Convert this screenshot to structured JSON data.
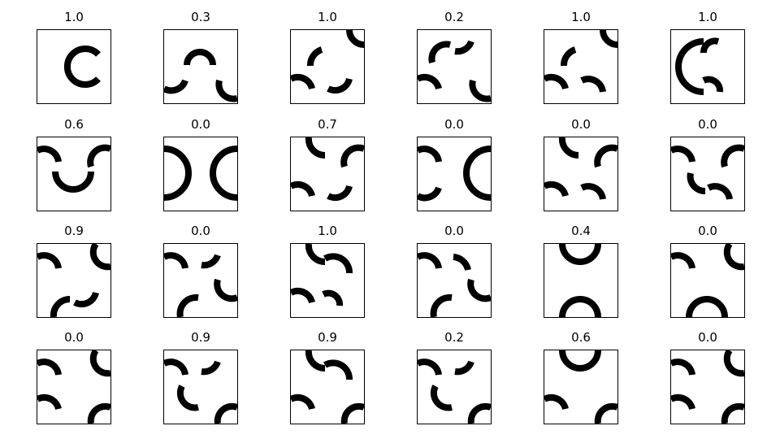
{
  "figure": {
    "panels": [
      {
        "score": "1.0",
        "glyph": [
          [
            "C"
          ]
        ]
      },
      {
        "score": "0.3",
        "glyph": [
          [
            "q2-center"
          ],
          [
            "bl-corner-top"
          ],
          [
            "br-corner-top"
          ]
        ]
      },
      {
        "score": "1.0",
        "glyph": [
          [
            "tr-corner"
          ],
          [
            "center-tl"
          ],
          [
            "bl-edge"
          ],
          [
            "bottom-center-right"
          ]
        ]
      },
      {
        "score": "0.2",
        "glyph": [
          [
            "center-tl-arc"
          ],
          [
            "center-tr-arc"
          ],
          [
            "bl-edge"
          ],
          [
            "br-corner-top"
          ]
        ]
      },
      {
        "score": "1.0",
        "glyph": [
          [
            "tr-corner"
          ],
          [
            "center-tl"
          ],
          [
            "bl-edge"
          ],
          [
            "bottom-center-left"
          ]
        ]
      },
      {
        "score": "1.0",
        "glyph": [
          [
            "left-big-c"
          ],
          [
            "center-top-right"
          ],
          [
            "center-bottom-right"
          ]
        ]
      },
      {
        "score": "0.6",
        "glyph": [
          [
            "tl-edge"
          ],
          [
            "tr-edge"
          ],
          [
            "center-u"
          ]
        ]
      },
      {
        "score": "0.0",
        "glyph": [
          [
            "left-half"
          ],
          [
            "right-half"
          ]
        ]
      },
      {
        "score": "0.7",
        "glyph": [
          [
            "top-left-hook"
          ],
          [
            "tr-edge"
          ],
          [
            "bl-edge"
          ],
          [
            "bottom-center-right"
          ]
        ]
      },
      {
        "score": "0.0",
        "glyph": [
          [
            "tl-edge"
          ],
          [
            "bl-corner-top"
          ],
          [
            "right-half"
          ]
        ]
      },
      {
        "score": "0.0",
        "glyph": [
          [
            "top-left-hook"
          ],
          [
            "tr-edge"
          ],
          [
            "bl-edge"
          ],
          [
            "bottom-center-left"
          ]
        ]
      },
      {
        "score": "0.0",
        "glyph": [
          [
            "tl-edge"
          ],
          [
            "tr-edge"
          ],
          [
            "center-hook-down"
          ],
          [
            "bottom-center-left"
          ]
        ]
      },
      {
        "score": "0.9",
        "glyph": [
          [
            "tl-edge"
          ],
          [
            "tr-corner-down"
          ],
          [
            "center-bottom-hook"
          ],
          [
            "bottom-center-right"
          ]
        ]
      },
      {
        "score": "0.0",
        "glyph": [
          [
            "tl-edge"
          ],
          [
            "center-tr-arc"
          ],
          [
            "right-hook"
          ],
          [
            "bottom-center-hook"
          ]
        ]
      },
      {
        "score": "1.0",
        "glyph": [
          [
            "top-left-hook"
          ],
          [
            "top-center-right"
          ],
          [
            "center-bottom-right"
          ],
          [
            "bl-edge"
          ]
        ]
      },
      {
        "score": "0.0",
        "glyph": [
          [
            "tl-edge"
          ],
          [
            "center-tl-small"
          ],
          [
            "right-hook"
          ],
          [
            "bottom-center-hook"
          ]
        ]
      },
      {
        "score": "0.4",
        "glyph": [
          [
            "top-u"
          ],
          [
            "bottom-n"
          ]
        ]
      },
      {
        "score": "0.0",
        "glyph": [
          [
            "tl-edge"
          ],
          [
            "tr-corner-down"
          ],
          [
            "bottom-n"
          ]
        ]
      },
      {
        "score": "0.0",
        "glyph": [
          [
            "tl-edge"
          ],
          [
            "tr-corner-down"
          ],
          [
            "bl-edge"
          ],
          [
            "br-corner-up"
          ]
        ]
      },
      {
        "score": "0.9",
        "glyph": [
          [
            "tl-edge"
          ],
          [
            "center-tr-arc"
          ],
          [
            "center-hook-down2"
          ],
          [
            "br-corner-up"
          ]
        ]
      },
      {
        "score": "0.9",
        "glyph": [
          [
            "top-left-hook"
          ],
          [
            "top-center-right"
          ],
          [
            "bl-edge"
          ],
          [
            "br-corner-up"
          ]
        ]
      },
      {
        "score": "0.2",
        "glyph": [
          [
            "tl-edge"
          ],
          [
            "center-tr-arc"
          ],
          [
            "center-hook-down2"
          ],
          [
            "br-corner-up"
          ]
        ]
      },
      {
        "score": "0.6",
        "glyph": [
          [
            "top-u"
          ],
          [
            "bl-edge"
          ],
          [
            "br-corner-up"
          ]
        ]
      },
      {
        "score": "0.0",
        "glyph": [
          [
            "tl-edge"
          ],
          [
            "tr-corner-down"
          ],
          [
            "bl-edge"
          ],
          [
            "br-corner-up"
          ]
        ]
      }
    ]
  }
}
